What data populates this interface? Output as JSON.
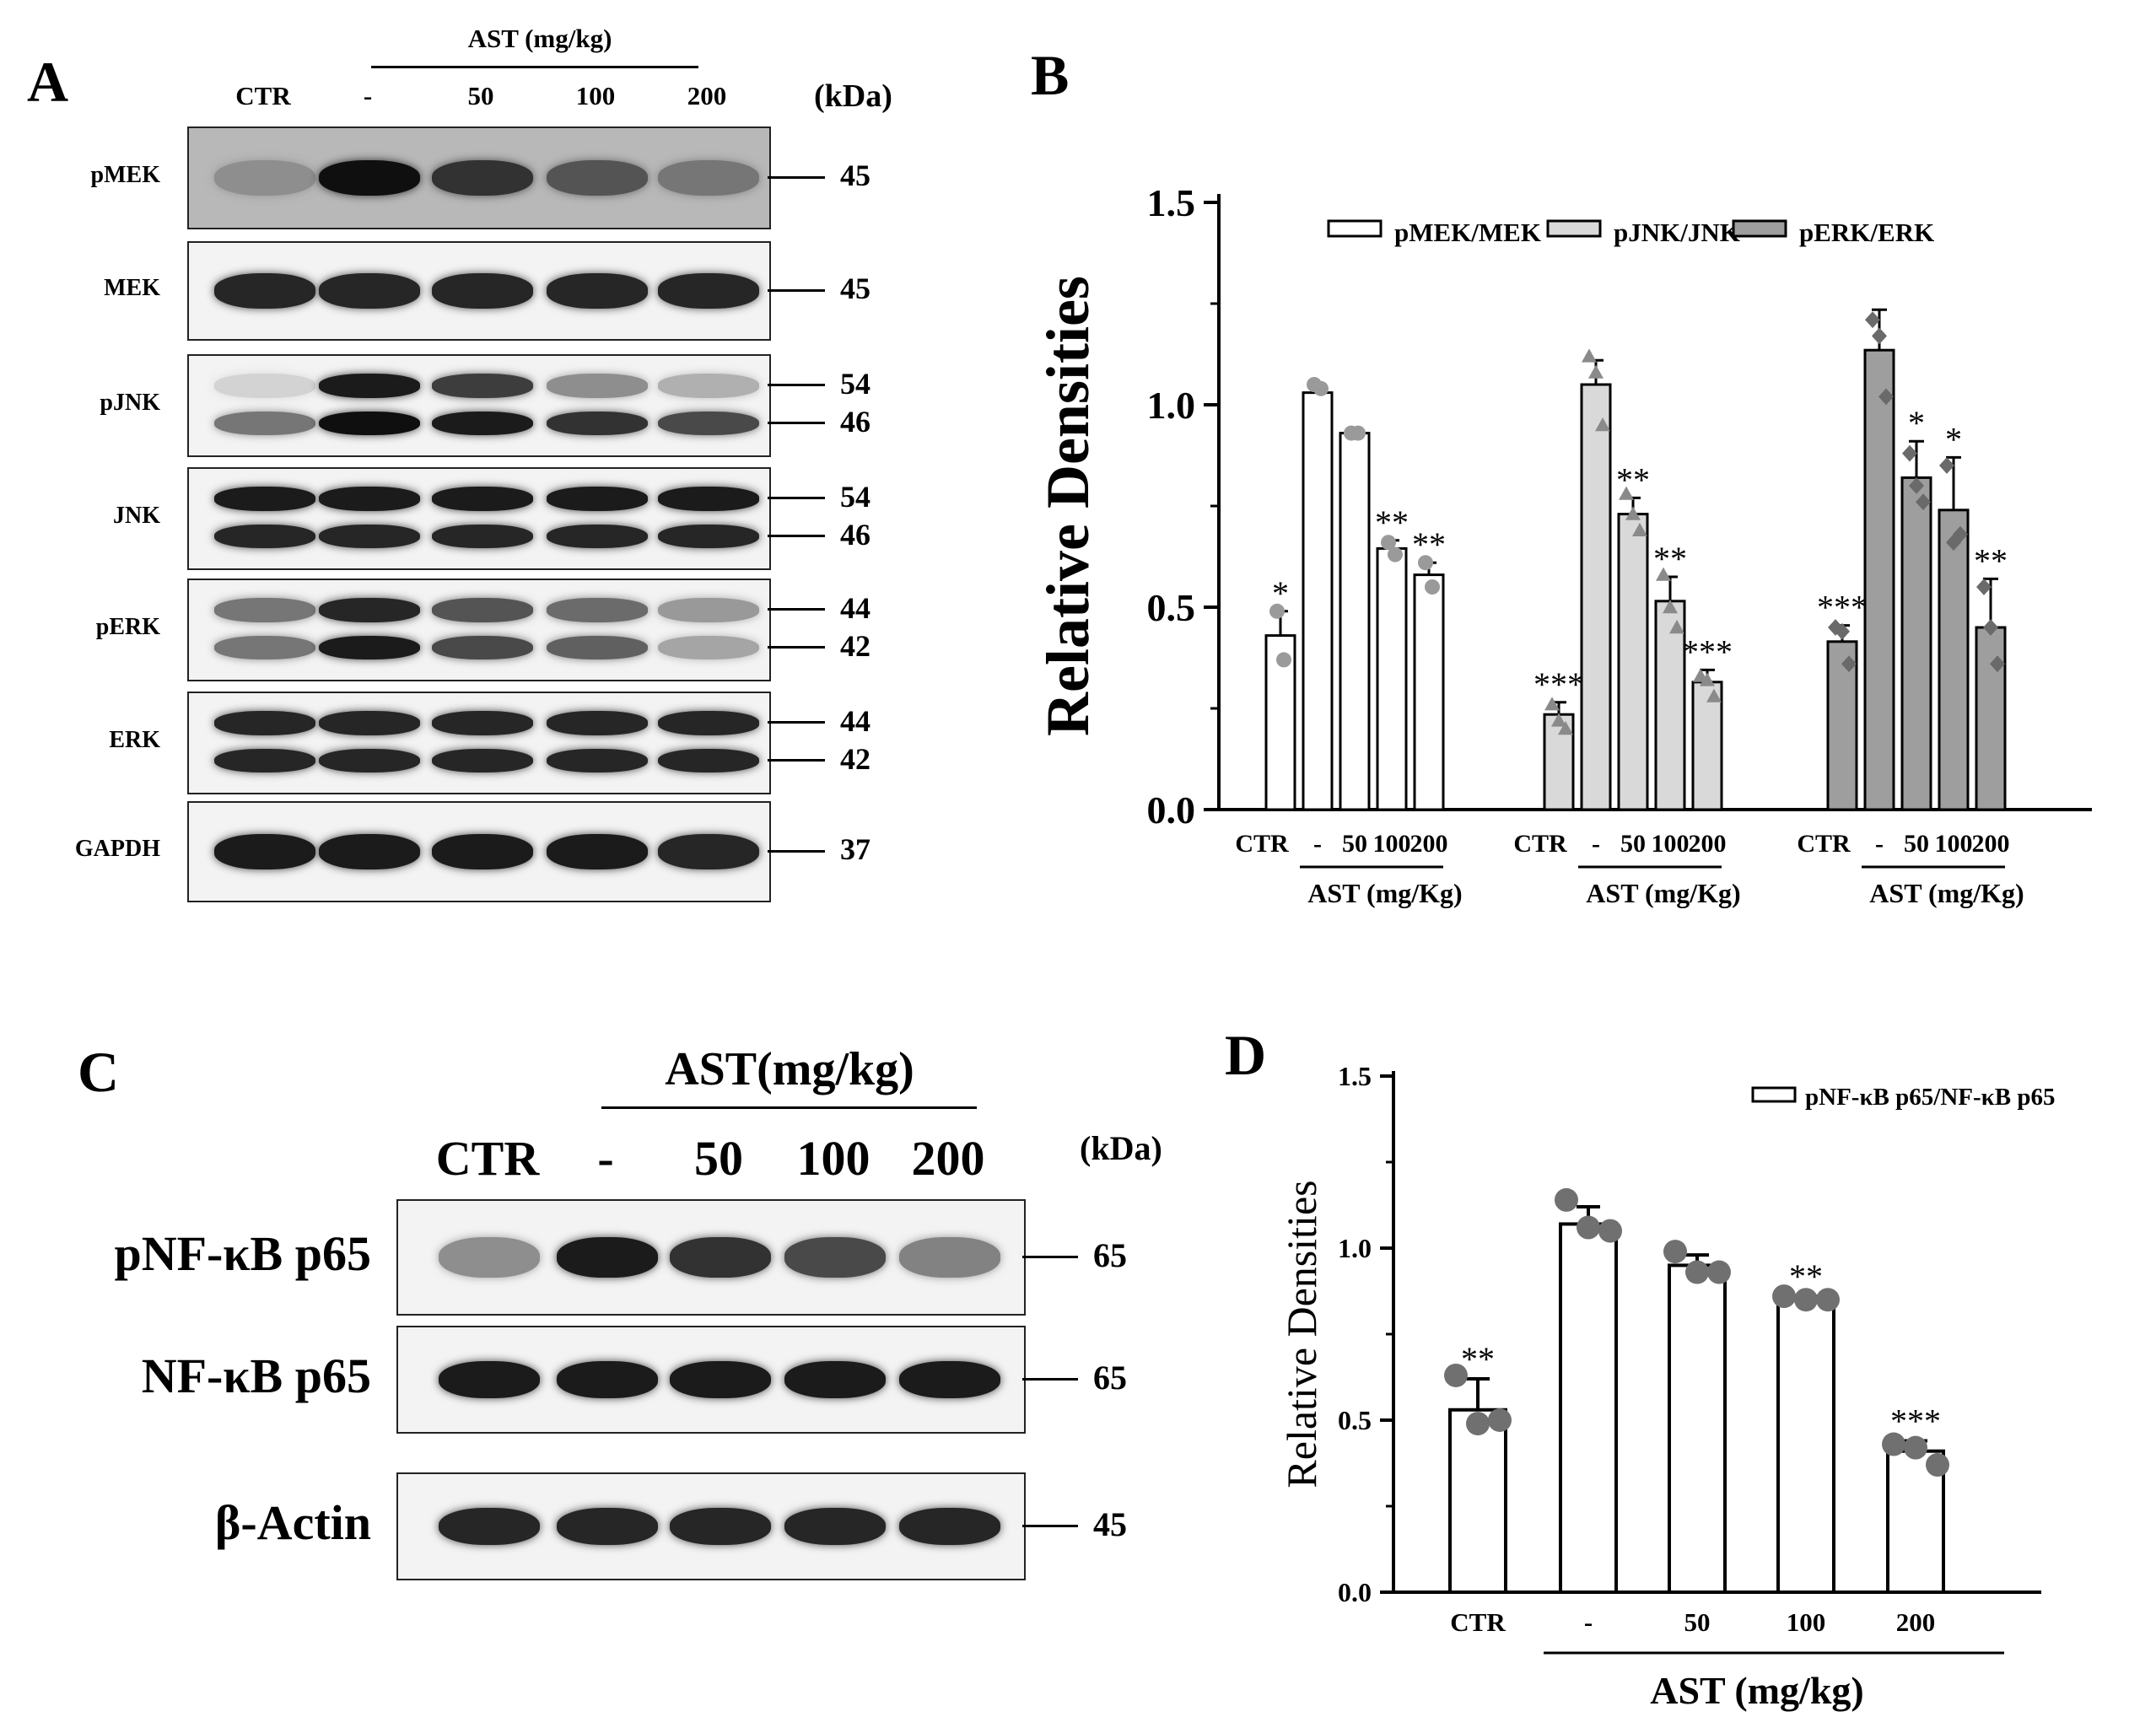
{
  "panels": {
    "A": {
      "letter": "A",
      "treatment_label": "AST (mg/kg)",
      "lanes": [
        "CTR",
        "-",
        "50",
        "100",
        "200"
      ],
      "kda_label": "(kDa)",
      "blots": [
        {
          "label": "pMEK",
          "markers": [
            "45"
          ],
          "bands": [
            [
              0.45,
              0
            ],
            [
              1.0,
              0
            ],
            [
              0.85,
              0
            ],
            [
              0.7,
              0
            ],
            [
              0.55,
              0
            ]
          ],
          "style": "dark"
        },
        {
          "label": "MEK",
          "markers": [
            "45"
          ],
          "bands": [
            [
              0.9,
              0
            ],
            [
              0.9,
              0
            ],
            [
              0.9,
              0
            ],
            [
              0.9,
              0
            ],
            [
              0.9,
              0
            ]
          ],
          "style": "light"
        },
        {
          "label": "pJNK",
          "markers": [
            "54",
            "46"
          ],
          "bands": [
            [
              0.15,
              0.55
            ],
            [
              0.95,
              1.0
            ],
            [
              0.8,
              0.95
            ],
            [
              0.45,
              0.85
            ],
            [
              0.3,
              0.75
            ]
          ],
          "style": "light"
        },
        {
          "label": "JNK",
          "markers": [
            "54",
            "46"
          ],
          "bands": [
            [
              0.95,
              0.9
            ],
            [
              0.95,
              0.9
            ],
            [
              0.95,
              0.9
            ],
            [
              0.95,
              0.9
            ],
            [
              0.95,
              0.9
            ]
          ],
          "style": "light"
        },
        {
          "label": "pERK",
          "markers": [
            "44",
            "42"
          ],
          "bands": [
            [
              0.55,
              0.55
            ],
            [
              0.9,
              0.95
            ],
            [
              0.7,
              0.75
            ],
            [
              0.6,
              0.65
            ],
            [
              0.4,
              0.35
            ]
          ],
          "style": "light"
        },
        {
          "label": "ERK",
          "markers": [
            "44",
            "42"
          ],
          "bands": [
            [
              0.9,
              0.9
            ],
            [
              0.9,
              0.9
            ],
            [
              0.9,
              0.9
            ],
            [
              0.9,
              0.9
            ],
            [
              0.9,
              0.9
            ]
          ],
          "style": "light"
        },
        {
          "label": "GAPDH",
          "markers": [
            "37"
          ],
          "bands": [
            [
              0.95,
              0
            ],
            [
              0.95,
              0
            ],
            [
              0.95,
              0
            ],
            [
              0.95,
              0
            ],
            [
              0.9,
              0
            ]
          ],
          "style": "light"
        }
      ]
    },
    "C": {
      "letter": "C",
      "treatment_label": "AST(mg/kg)",
      "lanes": [
        "CTR",
        "-",
        "50",
        "100",
        "200"
      ],
      "kda_label": "(kDa)",
      "blots": [
        {
          "label": "pNF-κB p65",
          "markers": [
            "65"
          ],
          "bands": [
            [
              0.45,
              0
            ],
            [
              0.95,
              0
            ],
            [
              0.85,
              0
            ],
            [
              0.75,
              0
            ],
            [
              0.5,
              0
            ]
          ]
        },
        {
          "label": "NF-κB p65",
          "markers": [
            "65"
          ],
          "bands": [
            [
              0.95,
              0
            ],
            [
              0.95,
              0
            ],
            [
              0.95,
              0
            ],
            [
              0.95,
              0
            ],
            [
              0.95,
              0
            ]
          ]
        },
        {
          "label": "β-Actin",
          "markers": [
            "45"
          ],
          "bands": [
            [
              0.9,
              0
            ],
            [
              0.9,
              0
            ],
            [
              0.9,
              0
            ],
            [
              0.9,
              0
            ],
            [
              0.9,
              0
            ]
          ]
        }
      ]
    },
    "B": {
      "letter": "B"
    },
    "D": {
      "letter": "D"
    }
  },
  "chart_data": [
    {
      "type": "bar",
      "panel": "B",
      "ylabel": "Relative Densities",
      "ylim": [
        0,
        1.5
      ],
      "yticks": [
        "0.0",
        "0.5",
        "1.0",
        "1.5"
      ],
      "legend": [
        "pMEK/MEK",
        "pJNK/JNK",
        "pERK/ERK"
      ],
      "legend_position": "top",
      "colors": [
        "#ffffff",
        "#d9d9d9",
        "#9e9e9e"
      ],
      "point_color": [
        "#9a9a9a",
        "#8a8a8a",
        "#6a6a6a"
      ],
      "categories": [
        "CTR",
        "-",
        "50",
        "100",
        "200"
      ],
      "group_label": "AST (mg/Kg)",
      "series": [
        {
          "name": "pMEK/MEK",
          "values": [
            0.43,
            1.03,
            0.93,
            0.645,
            0.58
          ],
          "errors": [
            0.06,
            0.01,
            0.01,
            0.02,
            0.03
          ],
          "significance": [
            "*",
            "",
            "",
            "**",
            "**"
          ],
          "points": [
            [
              0.49,
              0.37
            ],
            [
              1.05,
              1.04
            ],
            [
              0.93,
              0.93
            ],
            [
              0.66,
              0.63
            ],
            [
              0.61,
              0.55
            ]
          ]
        },
        {
          "name": "pJNK/JNK",
          "values": [
            0.235,
            1.05,
            0.73,
            0.515,
            0.315
          ],
          "errors": [
            0.03,
            0.06,
            0.04,
            0.06,
            0.03
          ],
          "significance": [
            "***",
            "",
            "**",
            "**",
            "***"
          ],
          "points": [
            [
              0.26,
              0.22,
              0.2
            ],
            [
              1.12,
              1.08,
              0.95
            ],
            [
              0.78,
              0.73,
              0.69
            ],
            [
              0.58,
              0.5,
              0.45
            ],
            [
              0.33,
              0.32,
              0.28
            ]
          ]
        },
        {
          "name": "pERK/ERK",
          "values": [
            0.415,
            1.135,
            0.82,
            0.74,
            0.45
          ],
          "errors": [
            0.04,
            0.1,
            0.09,
            0.13,
            0.12
          ],
          "significance": [
            "***",
            "",
            "*",
            "*",
            "**"
          ],
          "points": [
            [
              0.45,
              0.44,
              0.36
            ],
            [
              1.21,
              1.17,
              1.02
            ],
            [
              0.88,
              0.8,
              0.76
            ],
            [
              0.85,
              0.66,
              0.68
            ],
            [
              0.55,
              0.45,
              0.36
            ]
          ]
        }
      ]
    },
    {
      "type": "bar",
      "panel": "D",
      "ylabel": "Relative Densities",
      "ylim": [
        0,
        1.5
      ],
      "yticks": [
        "0.0",
        "0.5",
        "1.0",
        "1.5"
      ],
      "legend": [
        "pNF-κB p65/NF-κB p65"
      ],
      "legend_position": "top-right",
      "colors": [
        "#ffffff"
      ],
      "point_color": [
        "#707070"
      ],
      "categories": [
        "CTR",
        "-",
        "50",
        "100",
        "200"
      ],
      "group_label": "AST (mg/kg)",
      "series": [
        {
          "name": "pNF-κB p65/NF-κB p65",
          "values": [
            0.53,
            1.07,
            0.95,
            0.85,
            0.41
          ],
          "errors": [
            0.09,
            0.05,
            0.03,
            0.01,
            0.03
          ],
          "significance": [
            "**",
            "",
            "",
            "**",
            "***"
          ],
          "points": [
            [
              0.63,
              0.49,
              0.5
            ],
            [
              1.14,
              1.06,
              1.05
            ],
            [
              0.99,
              0.93,
              0.93
            ],
            [
              0.86,
              0.85,
              0.85
            ],
            [
              0.43,
              0.42,
              0.37
            ]
          ]
        }
      ]
    }
  ]
}
